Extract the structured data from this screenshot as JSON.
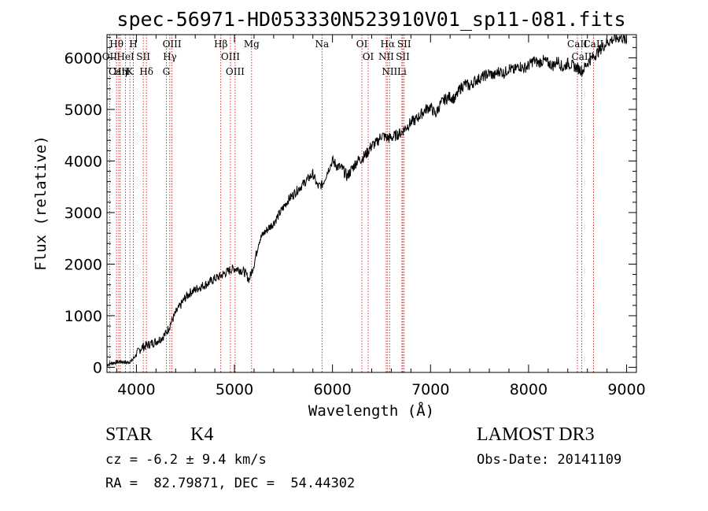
{
  "chart_data": {
    "type": "line",
    "title": "spec-56971-HD053330N523910V01_sp11-081.fits",
    "xlabel": "Wavelength (Å)",
    "ylabel": "Flux (relative)",
    "xlim": [
      3700,
      9100
    ],
    "ylim": [
      -100,
      6450
    ],
    "xticks": [
      4000,
      5000,
      6000,
      7000,
      8000,
      9000
    ],
    "yticks": [
      0,
      1000,
      2000,
      3000,
      4000,
      5000,
      6000
    ],
    "series": [
      {
        "name": "flux",
        "x": [
          3700,
          3750,
          3800,
          3850,
          3900,
          3950,
          4000,
          4050,
          4100,
          4150,
          4200,
          4250,
          4300,
          4350,
          4400,
          4450,
          4500,
          4550,
          4600,
          4650,
          4700,
          4750,
          4800,
          4850,
          4900,
          4950,
          5000,
          5050,
          5100,
          5150,
          5200,
          5250,
          5300,
          5350,
          5400,
          5450,
          5500,
          5550,
          5600,
          5650,
          5700,
          5750,
          5800,
          5850,
          5900,
          5950,
          6000,
          6050,
          6100,
          6150,
          6200,
          6250,
          6300,
          6350,
          6400,
          6450,
          6500,
          6550,
          6600,
          6650,
          6700,
          6750,
          6800,
          6850,
          6900,
          6950,
          7000,
          7050,
          7100,
          7150,
          7200,
          7250,
          7300,
          7350,
          7400,
          7450,
          7500,
          7550,
          7600,
          7650,
          7700,
          7750,
          7800,
          7850,
          7900,
          7950,
          8000,
          8050,
          8100,
          8150,
          8200,
          8250,
          8300,
          8350,
          8400,
          8450,
          8500,
          8550,
          8600,
          8650,
          8700,
          8750,
          8800,
          8850,
          8900,
          8950,
          9000
        ],
        "y": [
          50,
          80,
          100,
          110,
          90,
          120,
          250,
          380,
          420,
          460,
          500,
          560,
          650,
          850,
          1050,
          1200,
          1350,
          1450,
          1500,
          1560,
          1600,
          1650,
          1720,
          1760,
          1820,
          1880,
          1920,
          1900,
          1850,
          1700,
          2000,
          2450,
          2600,
          2700,
          2800,
          2950,
          3100,
          3250,
          3350,
          3450,
          3550,
          3650,
          3750,
          3500,
          3550,
          3800,
          4000,
          3900,
          3850,
          3700,
          3850,
          4000,
          4050,
          4150,
          4300,
          4350,
          4500,
          4450,
          4450,
          4500,
          4550,
          4650,
          4750,
          4800,
          4900,
          5000,
          5050,
          4900,
          5100,
          5200,
          5250,
          5200,
          5400,
          5500,
          5450,
          5550,
          5600,
          5650,
          5700,
          5650,
          5750,
          5700,
          5800,
          5750,
          5850,
          5800,
          5850,
          5950,
          5900,
          5950,
          5900,
          5850,
          5950,
          5800,
          5900,
          5850,
          5800,
          5750,
          5900,
          6000,
          6100,
          6200,
          6300,
          6350,
          6380,
          6400,
          6300
        ]
      }
    ],
    "lines": [
      {
        "label": "Hθ",
        "x": 3797
      },
      {
        "label": "OII",
        "x": 3727
      },
      {
        "label": "CaII",
        "x": 3820
      },
      {
        "label": "HeI",
        "x": 3889
      },
      {
        "label": "Hη",
        "x": 3836
      },
      {
        "label": "K",
        "x": 3934
      },
      {
        "label": "H",
        "x": 3969
      },
      {
        "label": "SII",
        "x": 4070
      },
      {
        "label": "Hδ",
        "x": 4102
      },
      {
        "label": "OIII",
        "x": 4363
      },
      {
        "label": "Hγ",
        "x": 4341
      },
      {
        "label": "G",
        "x": 4305
      },
      {
        "label": "Hβ",
        "x": 4861
      },
      {
        "label": "OIII",
        "x": 4959
      },
      {
        "label": "OIII",
        "x": 5007
      },
      {
        "label": "Mg",
        "x": 5175
      },
      {
        "label": "Na",
        "x": 5893
      },
      {
        "label": "OI",
        "x": 6300
      },
      {
        "label": "OI",
        "x": 6364
      },
      {
        "label": "Hα",
        "x": 6563
      },
      {
        "label": "NII",
        "x": 6548
      },
      {
        "label": "NII",
        "x": 6583
      },
      {
        "label": "SII",
        "x": 6717
      },
      {
        "label": "Li",
        "x": 6708
      },
      {
        "label": "SII",
        "x": 6731
      },
      {
        "label": "CaII",
        "x": 8498
      },
      {
        "label": "CaII",
        "x": 8542
      },
      {
        "label": "CaII",
        "x": 8662
      }
    ]
  },
  "info": {
    "class": "STAR",
    "subclass": "K4",
    "survey": "LAMOST DR3",
    "cz": "cz = -6.2 ± 9.4 km/s",
    "obs_date": "Obs-Date: 20141109",
    "radec": "RA =  82.79871, DEC =  54.44302"
  },
  "colors": {
    "spectrum": "#000000",
    "line_marker": "#cc0000",
    "text": "#000000"
  }
}
